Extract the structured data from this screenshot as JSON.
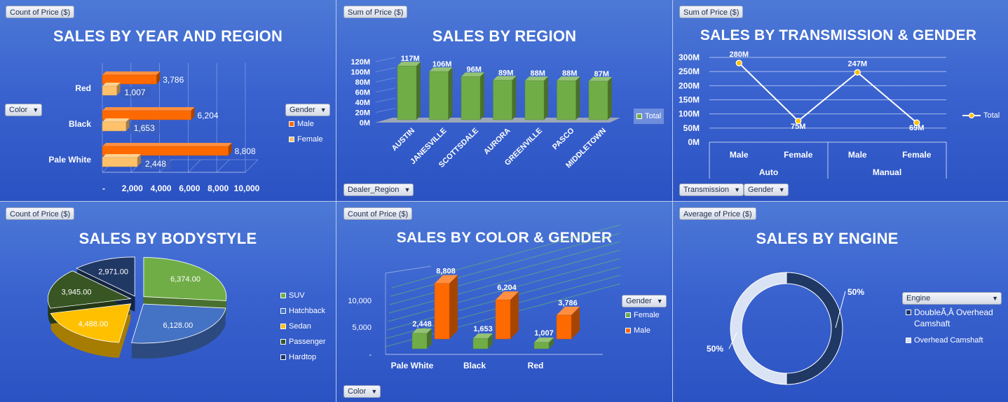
{
  "panels": {
    "year_region": {
      "field_button": "Count of Price ($)",
      "title": "SALES BY YEAR AND REGION",
      "filter_button": "Color",
      "legend_button": "Gender",
      "legend": [
        "Male",
        "Female"
      ]
    },
    "region": {
      "field_button": "Sum of Price ($)",
      "title": "SALES BY REGION",
      "filter_button": "Dealer_Region",
      "legend": [
        "Total"
      ]
    },
    "transmission_gender": {
      "field_button": "Sum of Price ($)",
      "title": "SALES BY TRANSMISSION & GENDER",
      "filter_buttons": [
        "Transmission",
        "Gender"
      ],
      "legend": [
        "Total"
      ]
    },
    "bodystyle": {
      "field_button": "Count of Price ($)",
      "title": "SALES BY BODYSTYLE",
      "legend": [
        "SUV",
        "Hatchback",
        "Sedan",
        "Passenger",
        "Hardtop"
      ]
    },
    "color_gender": {
      "field_button": "Count of Price ($)",
      "title": "SALES BY COLOR & GENDER",
      "filter_button": "Color",
      "legend_button": "Gender",
      "legend": [
        "Female",
        "Male"
      ]
    },
    "engine": {
      "field_button": "Average of Price ($)",
      "title": "SALES BY ENGINE",
      "legend_button": "Engine",
      "legend": [
        "DoubleÃ‚Â Overhead Camshaft",
        "Overhead Camshaft"
      ]
    }
  },
  "chart_data": [
    {
      "type": "bar",
      "orientation": "horizontal",
      "categories": [
        "Red",
        "Black",
        "Pale White"
      ],
      "series": [
        {
          "name": "Male",
          "values": [
            3786,
            6204,
            8808
          ],
          "labels": [
            "3,786",
            "6,204",
            "8,808"
          ],
          "color": "#ff6a00"
        },
        {
          "name": "Female",
          "values": [
            1007,
            1653,
            2448
          ],
          "labels": [
            "1,007",
            "1,653",
            "2,448"
          ],
          "color": "#ffc26b"
        }
      ],
      "xlim": [
        0,
        10000
      ],
      "ticks": [
        "-",
        "2,000",
        "4,000",
        "6,000",
        "8,000",
        "10,000"
      ]
    },
    {
      "type": "bar",
      "categories": [
        "AUSTIN",
        "JANESVILLE",
        "SCOTTSDALE",
        "AURORA",
        "GREENVILLE",
        "PASCO",
        "MIDDLETOWN"
      ],
      "series": [
        {
          "name": "Total",
          "values": [
            117,
            106,
            96,
            89,
            88,
            88,
            87
          ],
          "color": "#70ad47"
        }
      ],
      "labels": [
        "117M",
        "106M",
        "96M",
        "89M",
        "88M",
        "88M",
        "87M"
      ],
      "ylim": [
        0,
        120
      ],
      "ticks": [
        "0M",
        "20M",
        "40M",
        "60M",
        "80M",
        "100M",
        "120M"
      ]
    },
    {
      "type": "line",
      "categories": [
        "Male",
        "Female",
        "Male",
        "Female"
      ],
      "groups": [
        "Auto",
        "Manual"
      ],
      "series": [
        {
          "name": "Total",
          "values": [
            280,
            75,
            247,
            69
          ],
          "color": "#ffc000"
        }
      ],
      "labels": [
        "280M",
        "75M",
        "247M",
        "69M"
      ],
      "ylim": [
        0,
        300
      ],
      "ticks": [
        "0M",
        "50M",
        "100M",
        "150M",
        "200M",
        "250M",
        "300M"
      ]
    },
    {
      "type": "pie",
      "categories": [
        "SUV",
        "Hatchback",
        "Sedan",
        "Passenger",
        "Hardtop"
      ],
      "values": [
        6374,
        6128,
        4488,
        3945,
        2971
      ],
      "labels": [
        "6,374.00",
        "6,128.00",
        "4,488.00",
        "3,945.00",
        "2,971.00"
      ],
      "colors": [
        "#70ad47",
        "#4472c4",
        "#ffc000",
        "#375623",
        "#203864"
      ]
    },
    {
      "type": "bar",
      "categories": [
        "Pale White",
        "Black",
        "Red"
      ],
      "series": [
        {
          "name": "Female",
          "values": [
            2448,
            1653,
            1007
          ],
          "labels": [
            "2,448",
            "1,653",
            "1,007"
          ],
          "color": "#70ad47"
        },
        {
          "name": "Male",
          "values": [
            8808,
            6204,
            3786
          ],
          "labels": [
            "8,808",
            "6,204",
            "3,786"
          ],
          "color": "#ff6a00"
        }
      ],
      "ylim": [
        0,
        10000
      ],
      "ticks": [
        "-",
        "5,000",
        "10,000"
      ]
    },
    {
      "type": "pie",
      "variant": "donut",
      "categories": [
        "DoubleÃ‚Â Overhead Camshaft",
        "Overhead Camshaft"
      ],
      "values": [
        50,
        50
      ],
      "labels": [
        "50%",
        "50%"
      ],
      "colors": [
        "#1f3864",
        "#dae3f3"
      ]
    }
  ],
  "colors": {
    "background": "#3a63cf",
    "male": "#ff6a00",
    "female": "#ffc26b",
    "green": "#70ad47"
  }
}
